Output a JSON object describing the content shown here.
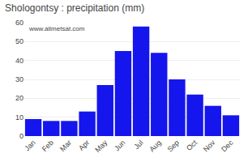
{
  "chart_data": {
    "type": "bar",
    "title": "Shologontsy : precipitation (mm)",
    "categories": [
      "Jan",
      "Feb",
      "Mar",
      "Apr",
      "May",
      "Jun",
      "Jul",
      "Aug",
      "Sep",
      "Oct",
      "Nov",
      "Dec"
    ],
    "values": [
      9,
      8,
      8,
      13,
      27,
      45,
      58,
      44,
      30,
      22,
      16,
      11
    ],
    "color": "#1515ee",
    "ylim": [
      0,
      60
    ],
    "yticks": [
      0,
      10,
      20,
      30,
      40,
      50,
      60
    ],
    "grid": true,
    "annotations": [
      "www.allmetsat.com"
    ]
  }
}
